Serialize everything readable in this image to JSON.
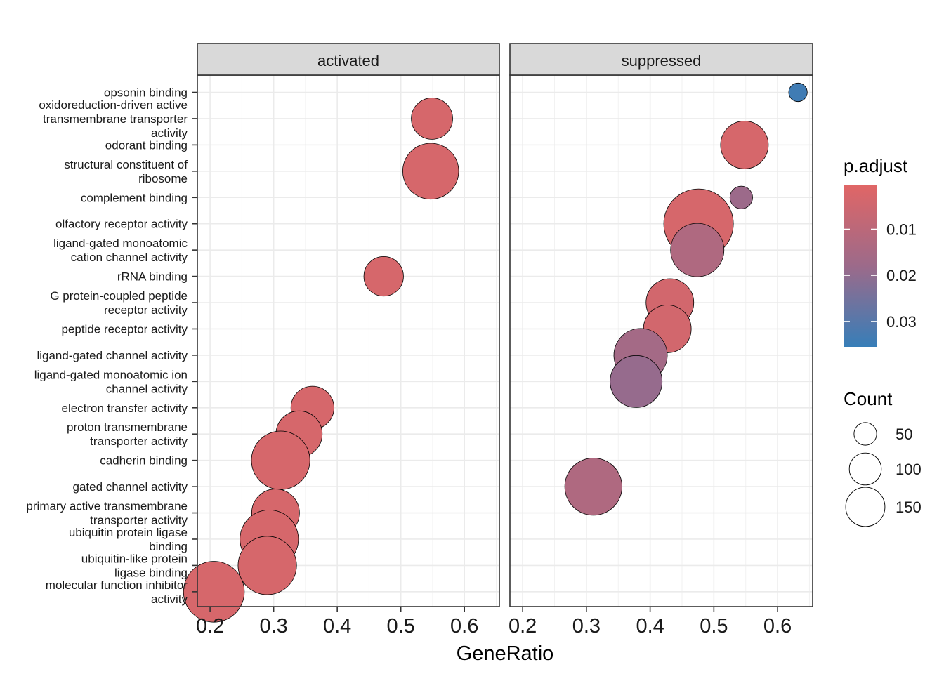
{
  "chart_data": {
    "type": "scatter",
    "title": "",
    "xlabel": "GeneRatio",
    "ylabel": "",
    "xlim": [
      0.18,
      0.655
    ],
    "x_ticks": [
      "0.2",
      "0.3",
      "0.4",
      "0.5",
      "0.6"
    ],
    "panels": [
      {
        "label": "activated",
        "points": [
          {
            "category": "oxidoreduction-driven active transmembrane transporter activity",
            "x": 0.549,
            "count": 60,
            "p_adjust": 0.003
          },
          {
            "category": "structural constituent of ribosome",
            "x": 0.547,
            "count": 110,
            "p_adjust": 0.003
          },
          {
            "category": "rRNA binding",
            "x": 0.473,
            "count": 55,
            "p_adjust": 0.003
          },
          {
            "category": "electron transfer activity",
            "x": 0.361,
            "count": 65,
            "p_adjust": 0.003
          },
          {
            "category": "proton transmembrane transporter activity",
            "x": 0.34,
            "count": 75,
            "p_adjust": 0.003
          },
          {
            "category": "cadherin binding",
            "x": 0.311,
            "count": 120,
            "p_adjust": 0.003
          },
          {
            "category": "primary active transmembrane transporter activity",
            "x": 0.303,
            "count": 80,
            "p_adjust": 0.003
          },
          {
            "category": "ubiquitin protein ligase binding",
            "x": 0.293,
            "count": 120,
            "p_adjust": 0.003
          },
          {
            "category": "ubiquitin-like protein ligase binding",
            "x": 0.29,
            "count": 120,
            "p_adjust": 0.003
          },
          {
            "category": "molecular function inhibitor activity",
            "x": 0.206,
            "count": 130,
            "p_adjust": 0.003
          }
        ]
      },
      {
        "label": "suppressed",
        "points": [
          {
            "category": "opsonin binding",
            "x": 0.632,
            "count": 12,
            "p_adjust": 0.034
          },
          {
            "category": "odorant binding",
            "x": 0.548,
            "count": 80,
            "p_adjust": 0.003
          },
          {
            "category": "complement binding",
            "x": 0.543,
            "count": 18,
            "p_adjust": 0.018
          },
          {
            "category": "olfactory receptor activity",
            "x": 0.476,
            "count": 170,
            "p_adjust": 0.003
          },
          {
            "category": "ligand-gated monoatomic cation channel activity",
            "x": 0.474,
            "count": 100,
            "p_adjust": 0.013
          },
          {
            "category": "G protein-coupled peptide receptor activity",
            "x": 0.431,
            "count": 80,
            "p_adjust": 0.004
          },
          {
            "category": "peptide receptor activity",
            "x": 0.427,
            "count": 80,
            "p_adjust": 0.004
          },
          {
            "category": "ligand-gated channel activity",
            "x": 0.385,
            "count": 100,
            "p_adjust": 0.016
          },
          {
            "category": "ligand-gated monoatomic ion channel activity",
            "x": 0.378,
            "count": 95,
            "p_adjust": 0.019
          },
          {
            "category": "gated channel activity",
            "x": 0.311,
            "count": 115,
            "p_adjust": 0.013
          }
        ]
      }
    ],
    "categories": [
      {
        "key": "opsonin binding",
        "lines": [
          "opsonin binding"
        ]
      },
      {
        "key": "oxidoreduction-driven active transmembrane transporter activity",
        "lines": [
          "oxidoreduction-driven active",
          "transmembrane transporter",
          "activity"
        ]
      },
      {
        "key": "odorant binding",
        "lines": [
          "odorant binding"
        ]
      },
      {
        "key": "structural constituent of ribosome",
        "lines": [
          "structural constituent of",
          "ribosome"
        ]
      },
      {
        "key": "complement binding",
        "lines": [
          "complement binding"
        ]
      },
      {
        "key": "olfactory receptor activity",
        "lines": [
          "olfactory receptor activity"
        ]
      },
      {
        "key": "ligand-gated monoatomic cation channel activity",
        "lines": [
          "ligand-gated monoatomic",
          "cation channel activity"
        ]
      },
      {
        "key": "rRNA binding",
        "lines": [
          "rRNA binding"
        ]
      },
      {
        "key": "G protein-coupled peptide receptor activity",
        "lines": [
          "G protein-coupled peptide",
          "receptor activity"
        ]
      },
      {
        "key": "peptide receptor activity",
        "lines": [
          "peptide receptor activity"
        ]
      },
      {
        "key": "ligand-gated channel activity",
        "lines": [
          "ligand-gated channel activity"
        ]
      },
      {
        "key": "ligand-gated monoatomic ion channel activity",
        "lines": [
          "ligand-gated monoatomic ion",
          "channel activity"
        ]
      },
      {
        "key": "electron transfer activity",
        "lines": [
          "electron transfer activity"
        ]
      },
      {
        "key": "proton transmembrane transporter activity",
        "lines": [
          "proton transmembrane",
          "transporter activity"
        ]
      },
      {
        "key": "cadherin binding",
        "lines": [
          "cadherin binding"
        ]
      },
      {
        "key": "gated channel activity",
        "lines": [
          "gated channel activity"
        ]
      },
      {
        "key": "primary active transmembrane transporter activity",
        "lines": [
          "primary active transmembrane",
          "transporter activity"
        ]
      },
      {
        "key": "ubiquitin protein ligase binding",
        "lines": [
          "ubiquitin protein ligase",
          "binding"
        ]
      },
      {
        "key": "ubiquitin-like protein ligase binding",
        "lines": [
          "ubiquitin-like protein",
          "ligase binding"
        ]
      },
      {
        "key": "molecular function inhibitor activity",
        "lines": [
          "molecular function inhibitor",
          "activity"
        ]
      }
    ],
    "color_legend": {
      "title": "p.adjust",
      "domain": [
        0.0005,
        0.0355
      ],
      "ticks": [
        {
          "value": 0.01,
          "label": "0.01"
        },
        {
          "value": 0.02,
          "label": "0.02"
        },
        {
          "value": 0.03,
          "label": "0.03"
        }
      ],
      "low_color": "#e06666",
      "high_color": "#377eb8"
    },
    "size_legend": {
      "title": "Count",
      "entries": [
        {
          "value": 50,
          "label": "50"
        },
        {
          "value": 100,
          "label": "100"
        },
        {
          "value": 150,
          "label": "150"
        }
      ]
    },
    "grid": true,
    "legend_position": "right"
  }
}
